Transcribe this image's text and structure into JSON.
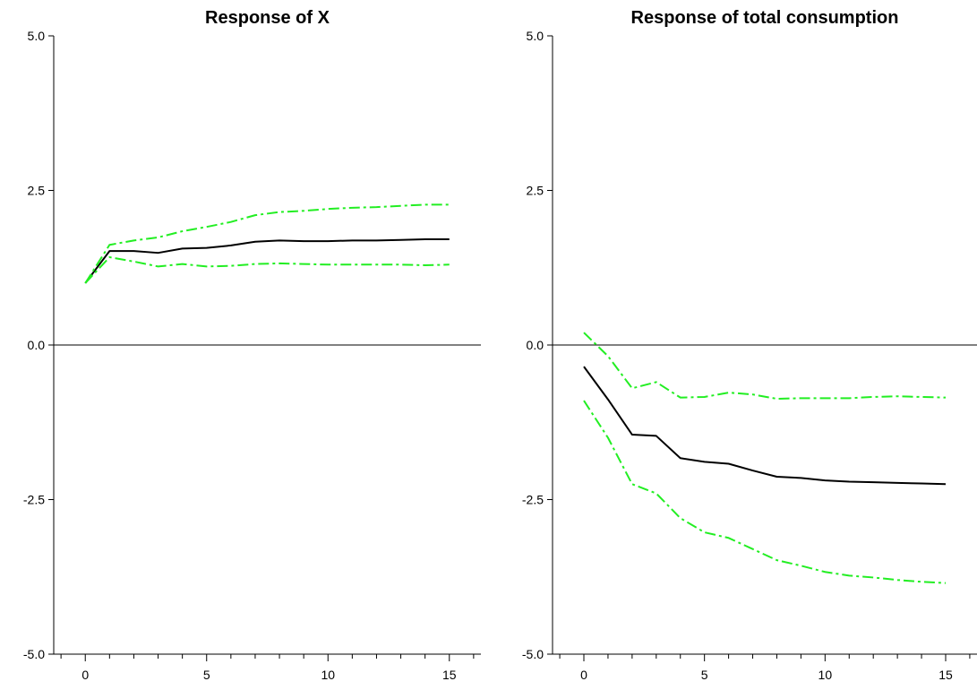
{
  "chart_data": [
    {
      "type": "line",
      "title": "Response of X",
      "xlabel": "",
      "ylabel": "",
      "xlim": [
        -1.3,
        16.3
      ],
      "ylim": [
        -5.0,
        5.0
      ],
      "xticks": [
        0,
        5,
        10,
        15
      ],
      "yticks": [
        -5.0,
        -2.5,
        0.0,
        2.5,
        5.0
      ],
      "ytick_labels": [
        "-5.0",
        "-2.5",
        "0.0",
        "2.5",
        "5.0"
      ],
      "zero_line": true,
      "grid": false,
      "x": [
        0,
        1,
        2,
        3,
        4,
        5,
        6,
        7,
        8,
        9,
        10,
        11,
        12,
        13,
        14,
        15
      ],
      "series": [
        {
          "role": "response",
          "color": "#000000",
          "style": "solid",
          "values": [
            1.0,
            1.52,
            1.52,
            1.49,
            1.56,
            1.57,
            1.61,
            1.67,
            1.69,
            1.68,
            1.68,
            1.69,
            1.69,
            1.7,
            1.71,
            1.71
          ]
        },
        {
          "role": "upper-band",
          "color": "#22ee22",
          "style": "dashdot",
          "values": [
            1.0,
            1.62,
            1.69,
            1.74,
            1.84,
            1.91,
            1.99,
            2.1,
            2.15,
            2.17,
            2.2,
            2.22,
            2.23,
            2.25,
            2.27,
            2.27
          ]
        },
        {
          "role": "lower-band",
          "color": "#22ee22",
          "style": "dashdot",
          "values": [
            1.0,
            1.42,
            1.35,
            1.27,
            1.31,
            1.27,
            1.28,
            1.31,
            1.32,
            1.31,
            1.3,
            1.3,
            1.3,
            1.3,
            1.29,
            1.3
          ]
        }
      ]
    },
    {
      "type": "line",
      "title": "Response of total consumption",
      "xlabel": "",
      "ylabel": "",
      "xlim": [
        -1.3,
        16.3
      ],
      "ylim": [
        -5.0,
        5.0
      ],
      "xticks": [
        0,
        5,
        10,
        15
      ],
      "yticks": [
        -5.0,
        -2.5,
        0.0,
        2.5,
        5.0
      ],
      "ytick_labels": [
        "-5.0",
        "-2.5",
        "0.0",
        "2.5",
        "5.0"
      ],
      "zero_line": true,
      "grid": false,
      "x": [
        0,
        1,
        2,
        3,
        4,
        5,
        6,
        7,
        8,
        9,
        10,
        11,
        12,
        13,
        14,
        15
      ],
      "series": [
        {
          "role": "response",
          "color": "#000000",
          "style": "solid",
          "values": [
            -0.35,
            -0.88,
            -1.45,
            -1.47,
            -1.83,
            -1.89,
            -1.92,
            -2.03,
            -2.13,
            -2.15,
            -2.19,
            -2.21,
            -2.22,
            -2.23,
            -2.24,
            -2.25
          ]
        },
        {
          "role": "upper-band",
          "color": "#22ee22",
          "style": "dashdot",
          "values": [
            0.2,
            -0.18,
            -0.7,
            -0.6,
            -0.85,
            -0.84,
            -0.77,
            -0.8,
            -0.87,
            -0.86,
            -0.86,
            -0.86,
            -0.84,
            -0.83,
            -0.84,
            -0.85
          ]
        },
        {
          "role": "lower-band",
          "color": "#22ee22",
          "style": "dashdot",
          "values": [
            -0.9,
            -1.5,
            -2.25,
            -2.4,
            -2.8,
            -3.03,
            -3.12,
            -3.3,
            -3.48,
            -3.57,
            -3.67,
            -3.73,
            -3.76,
            -3.8,
            -3.83,
            -3.85
          ]
        }
      ]
    }
  ]
}
